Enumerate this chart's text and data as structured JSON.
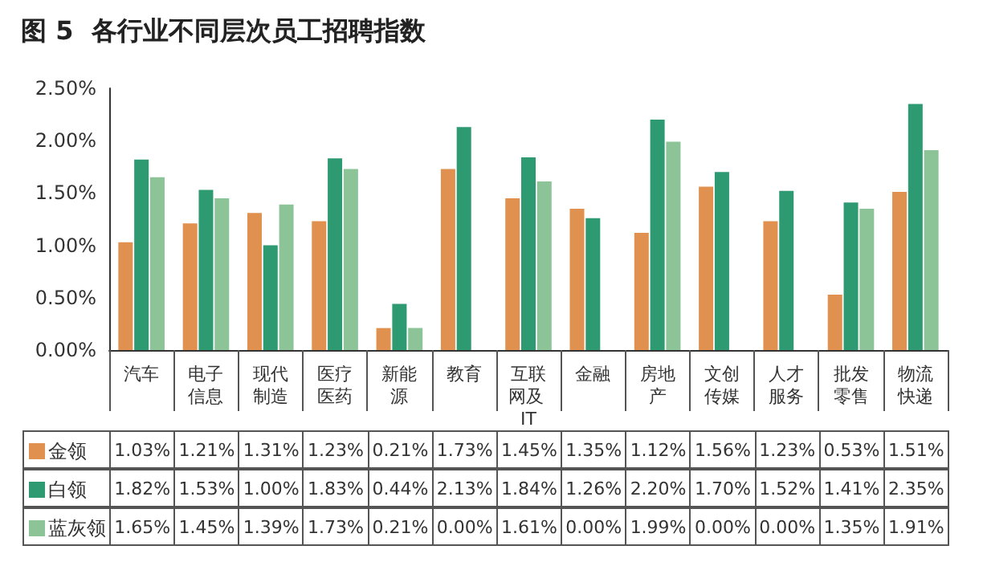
{
  "chart_data": {
    "type": "bar",
    "title": "图 5  各行业不同层次员工招聘指数",
    "categories": [
      "汽车",
      "电子信息",
      "现代制造",
      "医疗医药",
      "新能源",
      "教育",
      "互联网及 IT",
      "金融",
      "房地产",
      "文创传媒",
      "人才服务",
      "批发零售",
      "物流快递"
    ],
    "series": [
      {
        "name": "金领",
        "color": "#e0914f",
        "values": [
          1.03,
          1.21,
          1.31,
          1.23,
          0.21,
          1.73,
          1.45,
          1.35,
          1.12,
          1.56,
          1.23,
          0.53,
          1.51
        ],
        "value_labels": [
          "1.03%",
          "1.21%",
          "1.31%",
          "1.23%",
          "0.21%",
          "1.73%",
          "1.45%",
          "1.35%",
          "1.12%",
          "1.56%",
          "1.23%",
          "0.53%",
          "1.51%"
        ]
      },
      {
        "name": "白领",
        "color": "#2e9a72",
        "values": [
          1.82,
          1.53,
          1.0,
          1.83,
          0.44,
          2.13,
          1.84,
          1.26,
          2.2,
          1.7,
          1.52,
          1.41,
          2.35
        ],
        "value_labels": [
          "1.82%",
          "1.53%",
          "1.00%",
          "1.83%",
          "0.44%",
          "2.13%",
          "1.84%",
          "1.26%",
          "2.20%",
          "1.70%",
          "1.52%",
          "1.41%",
          "2.35%"
        ]
      },
      {
        "name": "蓝灰领",
        "color": "#8cc497",
        "values": [
          1.65,
          1.45,
          1.39,
          1.73,
          0.21,
          0.0,
          1.61,
          0.0,
          1.99,
          0.0,
          0.0,
          1.35,
          1.91
        ],
        "value_labels": [
          "1.65%",
          "1.45%",
          "1.39%",
          "1.73%",
          "0.21%",
          "0.00%",
          "1.61%",
          "0.00%",
          "1.99%",
          "0.00%",
          "0.00%",
          "1.35%",
          "1.91%"
        ]
      }
    ],
    "ylim": [
      0,
      2.5
    ],
    "yticks": [
      {
        "value": 0,
        "label": "0.00%"
      },
      {
        "value": 0.5,
        "label": "0.50%"
      },
      {
        "value": 1,
        "label": "1.00%"
      },
      {
        "value": 1.5,
        "label": "1.50%"
      },
      {
        "value": 2,
        "label": "2.00%"
      },
      {
        "value": 2.5,
        "label": "2.50%"
      }
    ],
    "grid": false,
    "legend": "bottom"
  }
}
